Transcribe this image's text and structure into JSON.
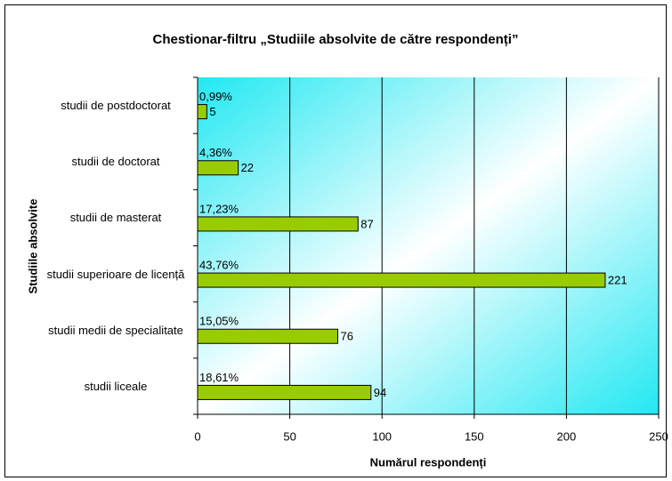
{
  "chart_data": {
    "type": "bar",
    "orientation": "horizontal",
    "title": "Chestionar-filtru „Studiile absolvite de către respondenți”",
    "x_label": "Numărul respondenți",
    "y_label": "Studiile absolvite",
    "categories": [
      "studii de postdoctorat",
      "studii de doctorat",
      "studii de masterat",
      "studii superioare de licență",
      "studii medii de specialitate",
      "studii liceale"
    ],
    "values": [
      5,
      22,
      87,
      221,
      76,
      94
    ],
    "share_labels": [
      "0,99%",
      "4,36%",
      "17,23%",
      "43,76%",
      "15,05%",
      "18,61%"
    ],
    "color": "#99cc00",
    "xlim": [
      0,
      250
    ],
    "xticks": [
      0,
      50,
      100,
      150,
      200,
      250
    ],
    "grid": true
  }
}
